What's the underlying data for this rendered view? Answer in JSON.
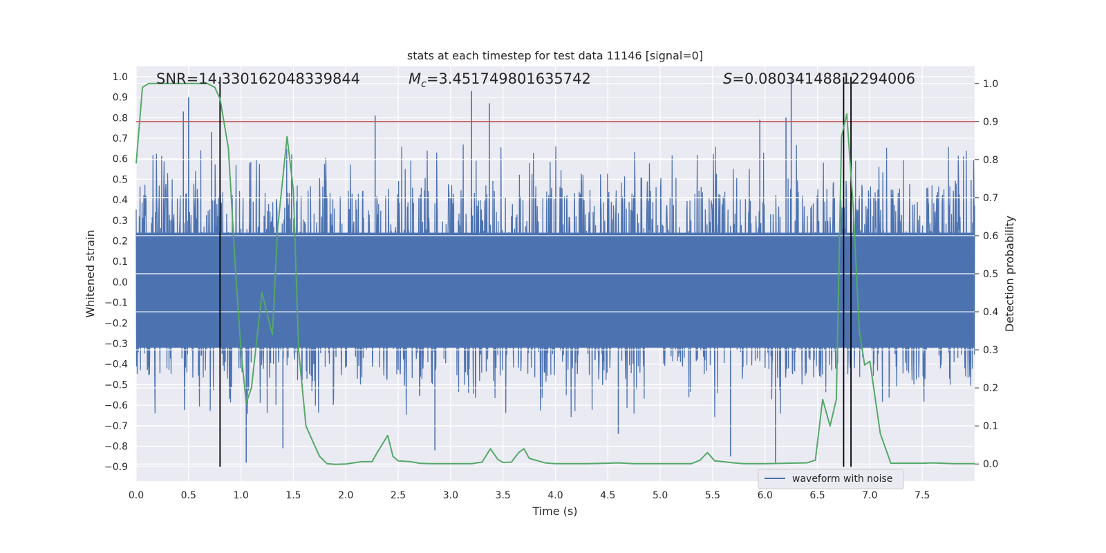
{
  "chart_data": {
    "type": "line",
    "title": "stats at each timestep for test data 11146 [signal=0]",
    "xlabel": "Time (s)",
    "ylabel_left": "Whitened strain",
    "ylabel_right": "Detection probability",
    "xlim": [
      0.0,
      8.0
    ],
    "ylim_left": [
      -0.97,
      1.05
    ],
    "ylim_right": [
      -0.045,
      1.045
    ],
    "x_ticks": [
      0.0,
      0.5,
      1.0,
      1.5,
      2.0,
      2.5,
      3.0,
      3.5,
      4.0,
      4.5,
      5.0,
      5.5,
      6.0,
      6.5,
      7.0,
      7.5
    ],
    "x_tick_labels": [
      "0.0",
      "0.5",
      "1.0",
      "1.5",
      "2.0",
      "2.5",
      "3.0",
      "3.5",
      "4.0",
      "4.5",
      "5.0",
      "5.5",
      "6.0",
      "6.5",
      "7.0",
      "7.5"
    ],
    "y_left_ticks": [
      1.0,
      0.9,
      0.8,
      0.7,
      0.6,
      0.5,
      0.4,
      0.3,
      0.2,
      0.1,
      0.0,
      -0.1,
      -0.2,
      -0.3,
      -0.4,
      -0.5,
      -0.6,
      -0.7,
      -0.8,
      -0.9
    ],
    "y_left_tick_labels": [
      "1.0",
      "0.9",
      "0.8",
      "0.7",
      "0.6",
      "0.5",
      "0.4",
      "0.3",
      "0.2",
      "0.1",
      "0.0",
      "−0.1",
      "−0.2",
      "−0.3",
      "−0.4",
      "−0.5",
      "−0.6",
      "−0.7",
      "−0.8",
      "−0.9"
    ],
    "y_right_ticks": [
      1.0,
      0.9,
      0.8,
      0.7,
      0.6,
      0.5,
      0.4,
      0.3,
      0.2,
      0.1,
      0.0
    ],
    "y_right_tick_labels": [
      "1.0",
      "0.9",
      "0.8",
      "0.7",
      "0.6",
      "0.5",
      "0.4",
      "0.3",
      "0.2",
      "0.1",
      "0.0"
    ],
    "annotations": {
      "snr": "SNR=14.330162048339844",
      "mc_symbol": "M",
      "mc_subscript": "c",
      "mc_value": "=3.451749801635742",
      "s_symbol": "S",
      "s_value": "=0.08034148812294006"
    },
    "threshold": {
      "value": 0.9,
      "axis": "right",
      "color": "#c44e52"
    },
    "vertical_markers": [
      0.8,
      6.75,
      6.82
    ],
    "series": [
      {
        "name": "waveform with noise",
        "axis": "left",
        "color": "#4c72b0",
        "envelope_approx": {
          "core_range": [
            -0.32,
            0.24
          ],
          "typical_peak_range": [
            -0.55,
            0.55
          ],
          "spikes": [
            [
              0.45,
              0.83
            ],
            [
              0.5,
              0.9
            ],
            [
              0.72,
              0.73
            ],
            [
              1.4,
              -0.81
            ],
            [
              1.05,
              -0.88
            ],
            [
              2.28,
              0.81
            ],
            [
              2.85,
              -0.82
            ],
            [
              3.2,
              0.93
            ],
            [
              3.37,
              0.87
            ],
            [
              5.67,
              -0.85
            ],
            [
              6.1,
              -0.88
            ],
            [
              6.25,
              1.0
            ],
            [
              6.2,
              0.8
            ],
            [
              5.95,
              0.79
            ],
            [
              4.6,
              -0.74
            ]
          ]
        }
      },
      {
        "axis": "right",
        "color": "#55a868",
        "x": [
          0.0,
          0.06,
          0.12,
          0.2,
          0.3,
          0.4,
          0.5,
          0.6,
          0.68,
          0.75,
          0.8,
          0.88,
          0.95,
          1.0,
          1.05,
          1.1,
          1.2,
          1.3,
          1.35,
          1.44,
          1.5,
          1.55,
          1.62,
          1.7,
          1.75,
          1.82,
          1.9,
          2.0,
          2.15,
          2.25,
          2.3,
          2.4,
          2.45,
          2.5,
          2.62,
          2.7,
          2.8,
          3.0,
          3.2,
          3.3,
          3.38,
          3.45,
          3.5,
          3.58,
          3.65,
          3.7,
          3.75,
          3.9,
          4.0,
          4.3,
          4.5,
          4.6,
          4.75,
          5.0,
          5.3,
          5.38,
          5.45,
          5.52,
          5.6,
          5.7,
          5.8,
          6.0,
          6.4,
          6.48,
          6.55,
          6.62,
          6.68,
          6.73,
          6.78,
          6.84,
          6.9,
          6.95,
          7.0,
          7.1,
          7.2,
          7.5,
          7.6,
          7.8,
          8.0
        ],
        "values": [
          0.79,
          0.99,
          1.0,
          1.0,
          1.0,
          1.0,
          1.0,
          1.0,
          1.0,
          0.99,
          0.96,
          0.83,
          0.5,
          0.3,
          0.16,
          0.2,
          0.45,
          0.34,
          0.62,
          0.86,
          0.72,
          0.3,
          0.1,
          0.05,
          0.02,
          0.001,
          -0.001,
          0.0,
          0.006,
          0.006,
          0.03,
          0.075,
          0.02,
          0.008,
          0.006,
          0.002,
          0.001,
          0.001,
          0.001,
          0.005,
          0.04,
          0.012,
          0.004,
          0.005,
          0.03,
          0.04,
          0.015,
          0.003,
          0.001,
          0.001,
          0.002,
          0.003,
          0.001,
          0.001,
          0.001,
          0.01,
          0.03,
          0.008,
          0.006,
          0.003,
          0.001,
          0.001,
          0.003,
          0.01,
          0.17,
          0.1,
          0.17,
          0.86,
          0.92,
          0.68,
          0.35,
          0.26,
          0.27,
          0.08,
          0.002,
          0.002,
          0.003,
          0.001,
          0.001
        ]
      }
    ],
    "legend": {
      "entries": [
        "waveform with noise"
      ],
      "placement": "lower-right"
    },
    "grid": true
  }
}
